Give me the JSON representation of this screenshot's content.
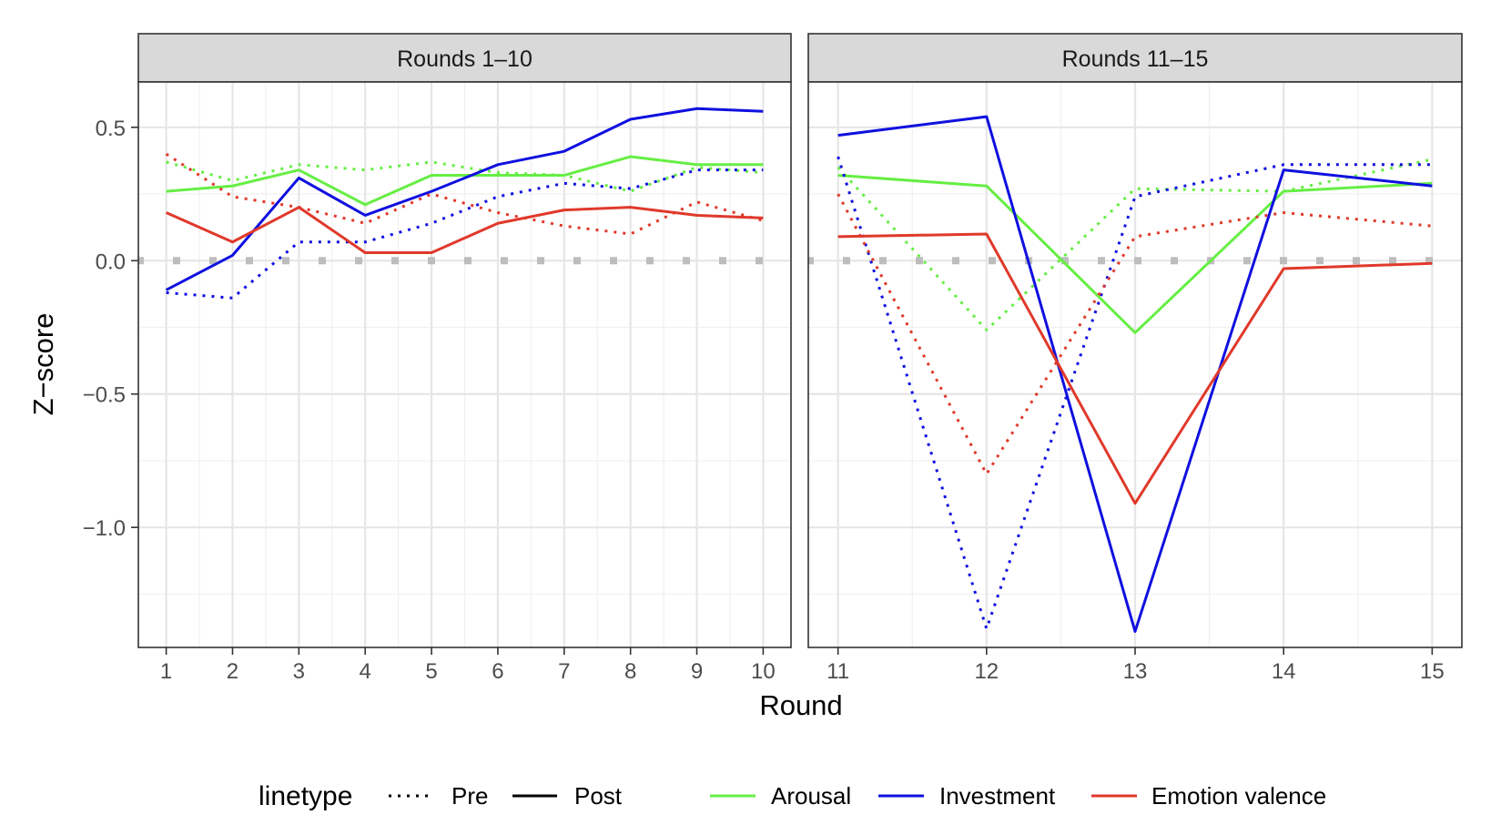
{
  "chart_data": {
    "type": "line",
    "xlabel": "Round",
    "ylabel": "Z−score",
    "ylim": [
      -1.45,
      0.67
    ],
    "y_ticks": [
      0.5,
      0.0,
      -0.5,
      -1.0
    ],
    "y_tick_labels": [
      "0.5",
      "0.0",
      "−0.5",
      "−1.0"
    ],
    "grid": true,
    "reference_line": {
      "y": 0,
      "style": "dotted",
      "color": "#bdbdbd"
    },
    "legend": {
      "position": "bottom",
      "linetype_title": "linetype",
      "linetype_items": [
        {
          "label": "Pre",
          "dash": "dotted"
        },
        {
          "label": "Post",
          "dash": "solid"
        }
      ],
      "color_items": [
        {
          "label": "Arousal",
          "color": "#66ee44"
        },
        {
          "label": "Investment",
          "color": "#1010e0"
        },
        {
          "label": "Emotion valence",
          "color": "#e0392b"
        }
      ]
    },
    "panels": [
      {
        "strip": "Rounds 1–10",
        "x": [
          1,
          2,
          3,
          4,
          5,
          6,
          7,
          8,
          9,
          10
        ],
        "x_tick_labels": [
          "1",
          "2",
          "3",
          "4",
          "5",
          "6",
          "7",
          "8",
          "9",
          "10"
        ],
        "xlim": [
          0.58,
          10.42
        ],
        "series": [
          {
            "name": "Arousal",
            "linetype": "Pre",
            "color": "#66ee44",
            "values": [
              0.37,
              0.3,
              0.36,
              0.34,
              0.37,
              0.33,
              0.32,
              0.26,
              0.35,
              0.33
            ]
          },
          {
            "name": "Arousal",
            "linetype": "Post",
            "color": "#66ee44",
            "values": [
              0.26,
              0.28,
              0.34,
              0.21,
              0.32,
              0.32,
              0.32,
              0.39,
              0.36,
              0.36
            ]
          },
          {
            "name": "Investment",
            "linetype": "Pre",
            "color": "#1010e0",
            "values": [
              -0.12,
              -0.14,
              0.07,
              0.07,
              0.14,
              0.24,
              0.29,
              0.27,
              0.34,
              0.34
            ]
          },
          {
            "name": "Investment",
            "linetype": "Post",
            "color": "#1010e0",
            "values": [
              -0.11,
              0.02,
              0.31,
              0.17,
              0.26,
              0.36,
              0.41,
              0.53,
              0.57,
              0.56
            ]
          },
          {
            "name": "Emotion valence",
            "linetype": "Pre",
            "color": "#e0392b",
            "values": [
              0.4,
              0.24,
              0.2,
              0.14,
              0.25,
              0.18,
              0.13,
              0.1,
              0.22,
              0.15
            ]
          },
          {
            "name": "Emotion valence",
            "linetype": "Post",
            "color": "#e0392b",
            "values": [
              0.18,
              0.07,
              0.2,
              0.03,
              0.03,
              0.14,
              0.19,
              0.2,
              0.17,
              0.16
            ]
          }
        ]
      },
      {
        "strip": "Rounds 11–15",
        "x": [
          11,
          12,
          13,
          14,
          15
        ],
        "x_tick_labels": [
          "11",
          "12",
          "13",
          "14",
          "15"
        ],
        "xlim": [
          10.8,
          15.2
        ],
        "series": [
          {
            "name": "Arousal",
            "linetype": "Pre",
            "color": "#66ee44",
            "values": [
              0.35,
              -0.26,
              0.27,
              0.26,
              0.38
            ]
          },
          {
            "name": "Arousal",
            "linetype": "Post",
            "color": "#66ee44",
            "values": [
              0.32,
              0.28,
              -0.27,
              0.26,
              0.29
            ]
          },
          {
            "name": "Investment",
            "linetype": "Pre",
            "color": "#1010e0",
            "values": [
              0.39,
              -1.38,
              0.24,
              0.36,
              0.36
            ]
          },
          {
            "name": "Investment",
            "linetype": "Post",
            "color": "#1010e0",
            "values": [
              0.47,
              0.54,
              -1.39,
              0.34,
              0.28
            ]
          },
          {
            "name": "Emotion valence",
            "linetype": "Pre",
            "color": "#e0392b",
            "values": [
              0.25,
              -0.8,
              0.09,
              0.18,
              0.13
            ]
          },
          {
            "name": "Emotion valence",
            "linetype": "Post",
            "color": "#e0392b",
            "values": [
              0.09,
              0.1,
              -0.91,
              -0.03,
              -0.01
            ]
          }
        ]
      }
    ]
  }
}
